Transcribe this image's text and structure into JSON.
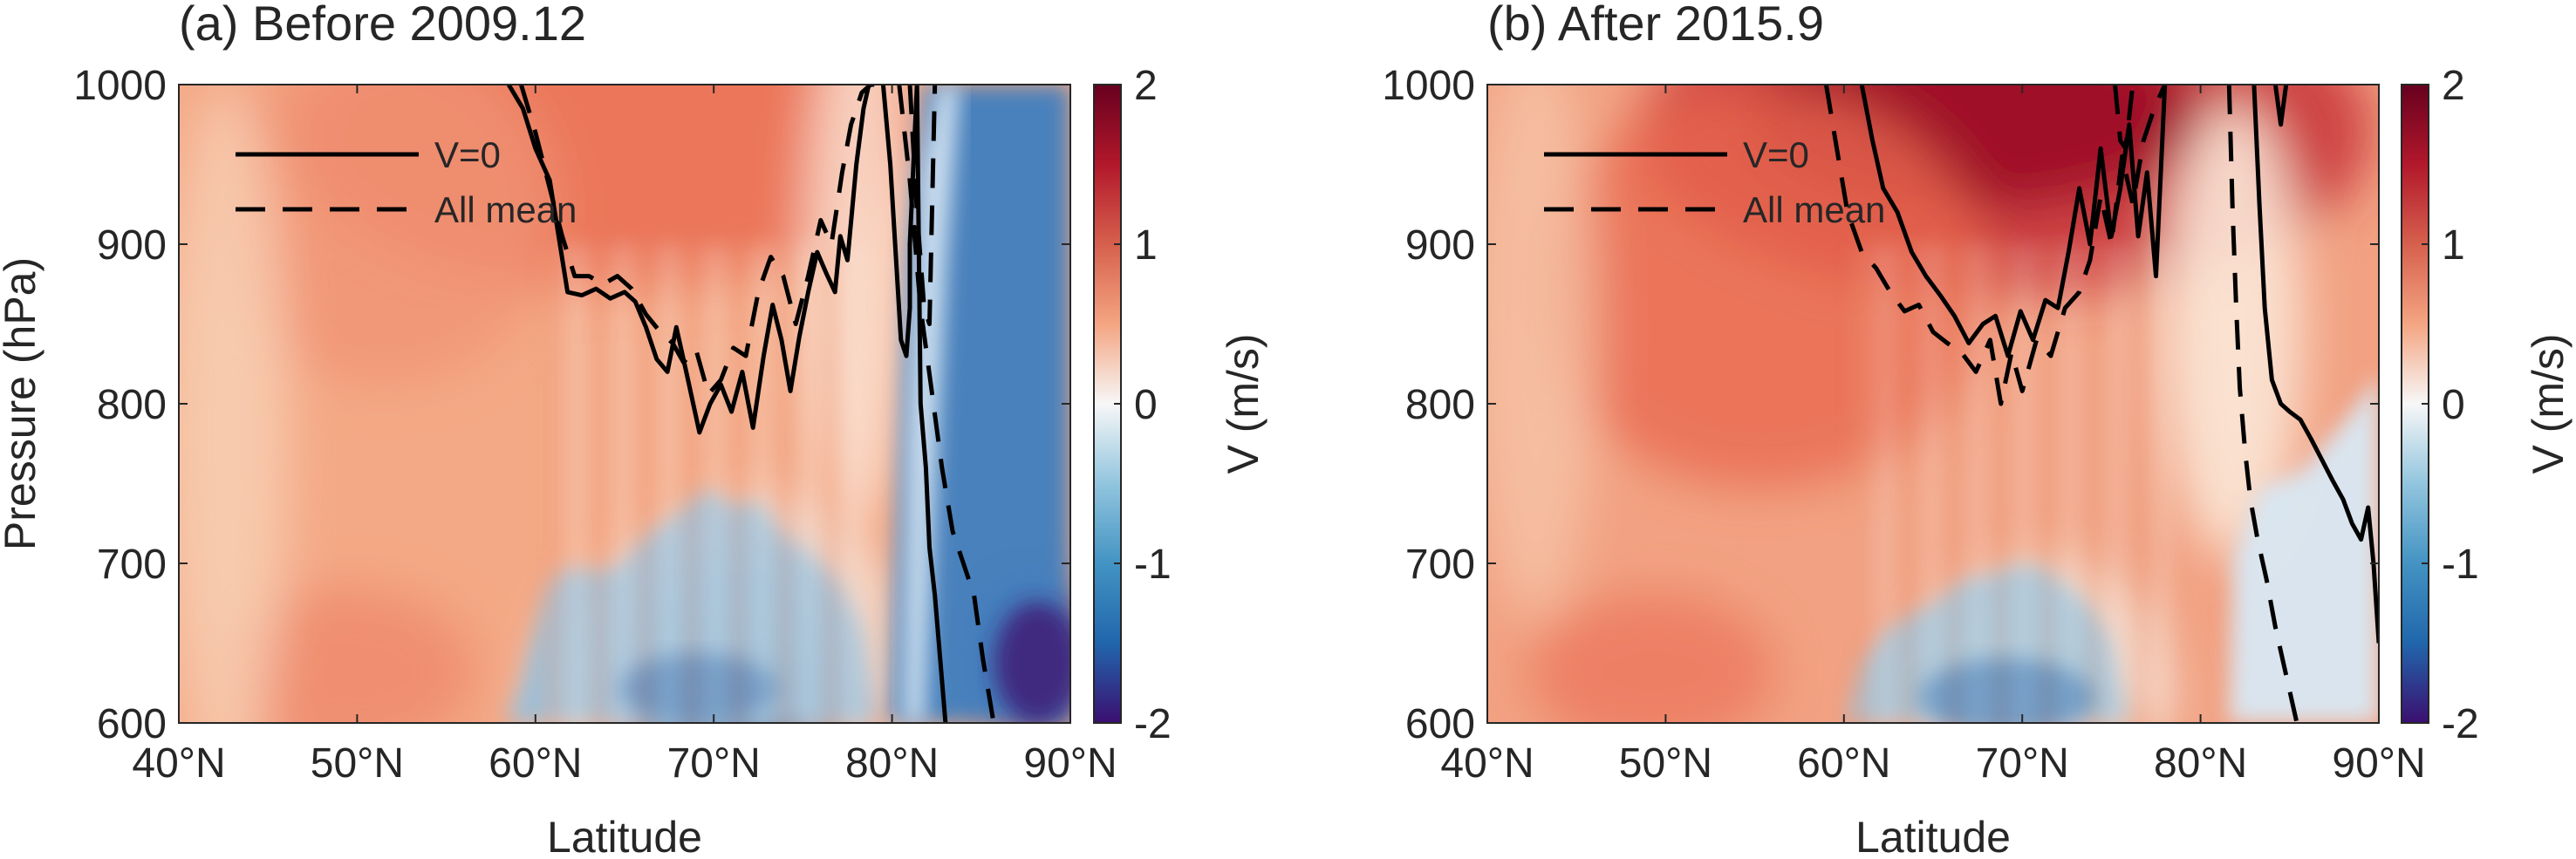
{
  "chart_data": [
    {
      "type": "heatmap",
      "title": "(a) Before 2009.12",
      "xlabel": "Latitude",
      "ylabel": "Pressure (hPa)",
      "xlim": [
        40,
        90
      ],
      "ylim": [
        1000,
        600
      ],
      "x_ticks": [
        40,
        50,
        60,
        70,
        80,
        90
      ],
      "x_tick_labels": [
        "40°N",
        "50°N",
        "60°N",
        "70°N",
        "80°N",
        "90°N"
      ],
      "y_ticks": [
        600,
        700,
        800,
        900,
        1000
      ],
      "y_tick_labels": [
        "600",
        "700",
        "800",
        "900",
        "1000"
      ],
      "colorbar": {
        "label": "V (m/s)",
        "range": [
          -2,
          2
        ],
        "ticks": [
          2,
          1,
          0,
          -1,
          -2
        ],
        "tick_labels": [
          "2",
          "1",
          "0",
          "-1",
          "-2"
        ],
        "colormap": "red-white-blue diverging"
      },
      "legend": {
        "placement": "top-left",
        "entries": [
          {
            "label": "V=0",
            "style": "solid"
          },
          {
            "label": "All mean",
            "style": "dashed"
          }
        ]
      },
      "contours": {
        "v_zero": [
          {
            "lat": [
              58.5,
              59.3,
              60.0,
              60.8,
              61.3,
              61.8,
              62.6,
              63.4,
              64.2,
              65.0,
              65.6,
              66.2,
              66.8,
              67.4,
              67.9,
              68.5,
              69.2,
              69.8,
              70.4,
              71.0,
              71.6,
              72.2,
              72.8,
              73.3,
              73.8,
              74.3,
              74.8,
              75.3,
              75.8,
              76.3,
              76.8,
              77.1,
              77.5,
              78.0,
              78.4,
              78.7,
              79.0
            ],
            "p": [
              1000,
              985,
              960,
              940,
              905,
              870,
              868,
              872,
              866,
              870,
              864,
              848,
              828,
              820,
              848,
              818,
              782,
              800,
              812,
              795,
              820,
              785,
              830,
              862,
              840,
              808,
              842,
              870,
              895,
              882,
              870,
              905,
              890,
              950,
              985,
              1000,
              1000
            ]
          },
          {
            "lat": [
              79.5,
              79.9,
              80.2,
              80.5,
              80.8,
              81.0,
              81.0,
              81.2,
              81.4,
              81.6,
              81.9,
              82.1,
              82.4,
              82.7,
              83.0
            ],
            "p": [
              1000,
              950,
              895,
              840,
              830,
              860,
              900,
              950,
              1000,
              800,
              760,
              710,
              680,
              640,
              600
            ]
          }
        ],
        "all_mean": [
          {
            "lat": [
              59.2,
              60.0,
              60.8,
              61.5,
              62.2,
              63.0,
              63.8,
              64.6,
              65.4,
              66.2,
              67.0,
              67.7,
              68.3,
              69.0,
              69.7,
              70.4,
              71.1,
              71.8,
              72.5,
              73.2,
              73.9,
              74.6,
              75.3,
              76.0,
              76.6,
              77.2,
              77.7,
              78.3,
              78.8
            ],
            "p": [
              1000,
              970,
              935,
              905,
              880,
              880,
              875,
              880,
              872,
              856,
              845,
              838,
              826,
              834,
              806,
              815,
              835,
              830,
              870,
              892,
              880,
              850,
              880,
              915,
              900,
              945,
              975,
              995,
              1000
            ]
          },
          {
            "lat": [
              80.4,
              81.0,
              81.6,
              82.2,
              82.8,
              83.4,
              84.0,
              84.6,
              85.1,
              85.7
            ],
            "p": [
              1000,
              940,
              860,
              810,
              760,
              720,
              700,
              680,
              640,
              600
            ]
          },
          {
            "lat": [
              81.0,
              81.4,
              81.8,
              82.1,
              82.4
            ],
            "p": [
              1000,
              920,
              860,
              850,
              1000
            ]
          }
        ]
      }
    },
    {
      "type": "heatmap",
      "title": "(b) After 2015.9",
      "xlabel": "Latitude",
      "ylabel": "",
      "xlim": [
        40,
        90
      ],
      "ylim": [
        1000,
        600
      ],
      "x_ticks": [
        40,
        50,
        60,
        70,
        80,
        90
      ],
      "x_tick_labels": [
        "40°N",
        "50°N",
        "60°N",
        "70°N",
        "80°N",
        "90°N"
      ],
      "y_ticks": [
        600,
        700,
        800,
        900,
        1000
      ],
      "y_tick_labels": [
        "600",
        "700",
        "800",
        "900",
        "1000"
      ],
      "colorbar": {
        "label": "V (m/s)",
        "range": [
          -2,
          2
        ],
        "ticks": [
          2,
          1,
          0,
          -1,
          -2
        ],
        "tick_labels": [
          "2",
          "1",
          "0",
          "-1",
          "-2"
        ],
        "colormap": "red-white-blue diverging"
      },
      "legend": {
        "placement": "top-left",
        "entries": [
          {
            "label": "V=0",
            "style": "solid"
          },
          {
            "label": "All mean",
            "style": "dashed"
          }
        ]
      },
      "contours": {
        "v_zero": [
          {
            "lat": [
              61.0,
              61.6,
              62.2,
              63.0,
              63.8,
              64.6,
              65.4,
              66.2,
              67.0,
              67.8,
              68.5,
              69.2,
              69.9,
              70.6,
              71.3,
              72.0,
              72.6,
              73.2,
              73.8,
              74.4,
              75.0,
              75.5,
              76.0,
              76.5,
              77.0,
              77.5,
              78.0
            ],
            "p": [
              1000,
              965,
              935,
              920,
              895,
              880,
              868,
              855,
              838,
              850,
              855,
              830,
              858,
              840,
              865,
              860,
              895,
              935,
              900,
              960,
              905,
              935,
              975,
              905,
              945,
              880,
              1000
            ]
          },
          {
            "lat": [
              83.0,
              83.3,
              83.6,
              84.0,
              84.5,
              85.0,
              85.6,
              86.2,
              86.8,
              87.4,
              88.0,
              88.5,
              89.0,
              89.4,
              89.7,
              90.0
            ],
            "p": [
              1000,
              925,
              860,
              815,
              800,
              795,
              790,
              778,
              765,
              752,
              740,
              725,
              715,
              735,
              700,
              650
            ]
          },
          {
            "lat": [
              84.2,
              84.5,
              84.8
            ],
            "p": [
              1000,
              975,
              1000
            ]
          }
        ],
        "all_mean": [
          {
            "lat": [
              59.0,
              59.6,
              60.2,
              61.0,
              61.8,
              62.6,
              63.4,
              64.2,
              65.0,
              65.8,
              66.6,
              67.4,
              68.2,
              68.8,
              69.4,
              70.0,
              70.8,
              71.6,
              72.4,
              73.2,
              73.8,
              74.4,
              75.0,
              75.6,
              76.2,
              76.8,
              77.4,
              78.0
            ],
            "p": [
              1000,
              960,
              920,
              895,
              885,
              870,
              858,
              862,
              845,
              838,
              832,
              820,
              840,
              800,
              832,
              808,
              840,
              830,
              860,
              870,
              890,
              930,
              900,
              955,
              925,
              965,
              985,
              1000
            ]
          },
          {
            "lat": [
              81.6,
              81.8,
              82.0,
              82.2,
              82.5,
              82.8,
              83.2,
              83.7,
              84.2,
              84.8,
              85.4
            ],
            "p": [
              1000,
              920,
              860,
              810,
              770,
              740,
              715,
              690,
              660,
              630,
              600
            ]
          },
          {
            "lat": [
              75.2,
              75.5,
              75.8,
              76.2
            ],
            "p": [
              1000,
              965,
              960,
              1000
            ]
          }
        ]
      }
    }
  ]
}
